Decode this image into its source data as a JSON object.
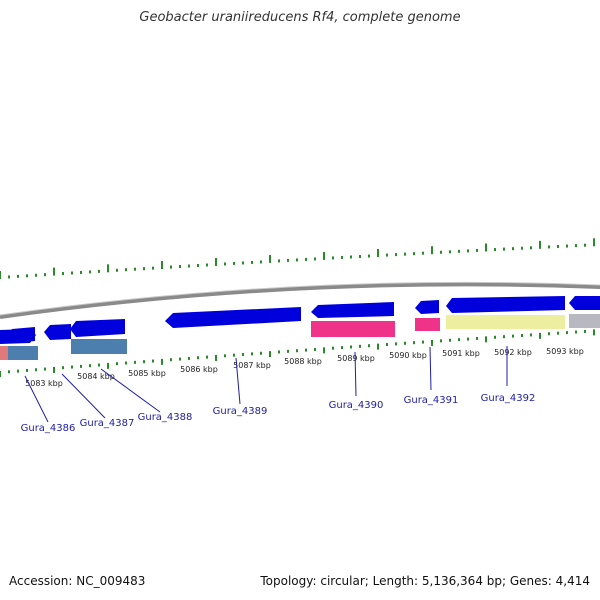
{
  "title": "Geobacter uraniireducens Rf4, complete genome",
  "accession": "Accession: NC_009483",
  "summary": "Topology: circular; Length: 5,136,364 bp; Genes: 4,414",
  "colors": {
    "forward": "#0000dd",
    "pink": "#ee3388",
    "yellow": "#eeeea0",
    "steel": "#4d7fae",
    "salmon": "#e07a7a",
    "grey": "#b8b8c0",
    "ticks": "#2a8a2a",
    "backbone": "#8a8a8a",
    "label": "#1d1daa"
  },
  "kbp_ticks": [
    {
      "label": "5083 kbp"
    },
    {
      "label": "5084 kbp"
    },
    {
      "label": "5085 kbp"
    },
    {
      "label": "5086 kbp"
    },
    {
      "label": "5087 kbp"
    },
    {
      "label": "5088 kbp"
    },
    {
      "label": "5089 kbp"
    },
    {
      "label": "5090 kbp"
    },
    {
      "label": "5091 kbp"
    },
    {
      "label": "5092 kbp"
    },
    {
      "label": "5093 kbp"
    }
  ],
  "gene_labels": [
    {
      "name": "Gura_4386"
    },
    {
      "name": "Gura_4387"
    },
    {
      "name": "Gura_4388"
    },
    {
      "name": "Gura_4389"
    },
    {
      "name": "Gura_4390"
    },
    {
      "name": "Gura_4391"
    },
    {
      "name": "Gura_4392"
    }
  ]
}
